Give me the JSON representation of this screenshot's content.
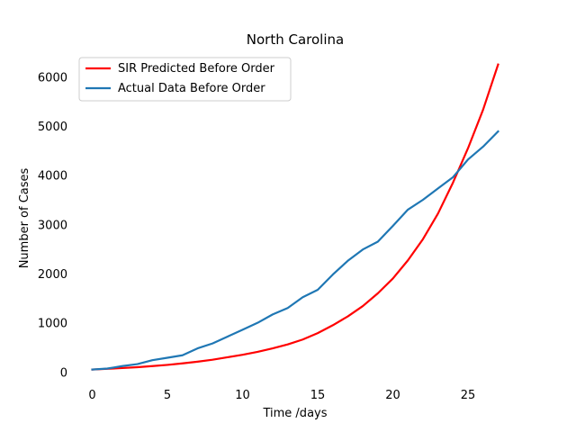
{
  "chart_data": {
    "type": "line",
    "title": "North Carolina",
    "xlabel": "Time /days",
    "ylabel": "Number of Cases",
    "xlim": [
      -1.35,
      28.35
    ],
    "ylim": [
      -250,
      6500
    ],
    "x_ticks": [
      0,
      5,
      10,
      15,
      20,
      25
    ],
    "y_ticks": [
      0,
      1000,
      2000,
      3000,
      4000,
      5000,
      6000
    ],
    "x_tick_labels": [
      "0",
      "5",
      "10",
      "15",
      "20",
      "25"
    ],
    "y_tick_labels": [
      "0",
      "1000",
      "2000",
      "3000",
      "4000",
      "5000",
      "6000"
    ],
    "grid": false,
    "legend": {
      "position": "top-left"
    },
    "series": [
      {
        "name": "SIR Predicted Before Order",
        "color": "#ff0000",
        "x": [
          0,
          1,
          2,
          3,
          4,
          5,
          6,
          7,
          8,
          9,
          10,
          11,
          12,
          13,
          14,
          15,
          16,
          17,
          18,
          19,
          20,
          21,
          22,
          23,
          24,
          25,
          26,
          27
        ],
        "values": [
          50,
          64,
          80,
          98,
          120,
          145,
          175,
          210,
          250,
          300,
          350,
          410,
          480,
          560,
          660,
          790,
          950,
          1130,
          1340,
          1600,
          1900,
          2270,
          2700,
          3220,
          3850,
          4550,
          5330,
          6250
        ]
      },
      {
        "name": "Actual Data Before Order",
        "color": "#1f77b4",
        "x": [
          0,
          1,
          2,
          3,
          4,
          5,
          6,
          7,
          8,
          9,
          10,
          11,
          12,
          13,
          14,
          15,
          16,
          17,
          18,
          19,
          20,
          21,
          22,
          23,
          24,
          25,
          26,
          27
        ],
        "values": [
          50,
          70,
          120,
          160,
          240,
          290,
          340,
          480,
          580,
          720,
          860,
          1000,
          1170,
          1300,
          1520,
          1670,
          1980,
          2260,
          2490,
          2650,
          2970,
          3300,
          3500,
          3730,
          3960,
          4320,
          4580,
          4890
        ]
      }
    ]
  }
}
